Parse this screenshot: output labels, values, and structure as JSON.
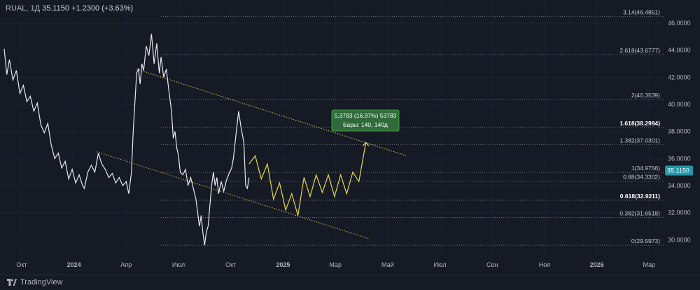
{
  "header": {
    "symbol": "RUAL, 1Д",
    "price": "35.1150",
    "change": "+1.2300 (+3.63%)"
  },
  "brand": "TradingView",
  "colors": {
    "background": "#161a25",
    "price_line": "#e6e8ee",
    "projection": "#e8d84a",
    "channel": "#d9c84a",
    "fib_line": "#6b6f7a",
    "axis_text": "#b2b5be",
    "current_price_bg": "#2196a8",
    "measure_bg": "#2f6b3a",
    "measure_border": "#4caf50"
  },
  "chart_data": {
    "type": "line",
    "symbol": "RUAL",
    "interval": "1Д",
    "y_axis": {
      "ylim": [
        29.4,
        47.0
      ],
      "ticks": [
        "30.0000",
        "32.0000",
        "34.0000",
        "36.0000",
        "38.0000",
        "40.0000",
        "42.0000",
        "44.0000",
        "46.0000"
      ],
      "position": "right"
    },
    "x_axis": {
      "ticks": [
        "Окт",
        "2024",
        "Апр",
        "Июл",
        "Окт",
        "2025",
        "Мар",
        "Май",
        "Июл",
        "Сен",
        "Ноя",
        "2026",
        "Мар"
      ]
    },
    "current_price": "35.1150",
    "fib_levels": [
      {
        "label": "0(29.5973)",
        "value": 29.5973
      },
      {
        "label": "0.382(31.6518)",
        "value": 31.6518
      },
      {
        "label": "0.618(32.9211)",
        "value": 32.9211,
        "bold": true
      },
      {
        "label": "0.88(34.3302)",
        "value": 34.3302
      },
      {
        "label": "1(34.9756)",
        "value": 34.9756
      },
      {
        "label": "1.382(37.0301)",
        "value": 37.0301
      },
      {
        "label": "1.618(38.2994)",
        "value": 38.2994,
        "bold": true
      },
      {
        "label": "2(40.3539)",
        "value": 40.3539
      },
      {
        "label": "2.618(43.6777)",
        "value": 43.6777
      },
      {
        "label": "3.14(46.4851)",
        "value": 46.4851
      }
    ],
    "measure": {
      "line1": "5.3783 (16.97%) 53783",
      "line2": "Бары: 140, 140д"
    },
    "price_series": [
      [
        0,
        44.1
      ],
      [
        0.15,
        42.2
      ],
      [
        0.3,
        43.3
      ],
      [
        0.5,
        41.8
      ],
      [
        0.7,
        42.5
      ],
      [
        0.9,
        40.8
      ],
      [
        1.1,
        41.4
      ],
      [
        1.3,
        40.2
      ],
      [
        1.5,
        40.6
      ],
      [
        1.7,
        39.5
      ],
      [
        1.9,
        40.1
      ],
      [
        2.1,
        38.5
      ],
      [
        2.3,
        37.9
      ],
      [
        2.5,
        38.6
      ],
      [
        2.7,
        37.0
      ],
      [
        2.9,
        36.0
      ],
      [
        3.1,
        36.4
      ],
      [
        3.3,
        35.3
      ],
      [
        3.5,
        35.8
      ],
      [
        3.7,
        34.5
      ],
      [
        3.9,
        35.2
      ],
      [
        4.1,
        34.2
      ],
      [
        4.3,
        34.8
      ],
      [
        4.5,
        34.0
      ],
      [
        4.6,
        33.8
      ],
      [
        4.8,
        35.0
      ],
      [
        5.0,
        35.5
      ],
      [
        5.2,
        35.0
      ],
      [
        5.4,
        36.4
      ],
      [
        5.6,
        35.6
      ],
      [
        5.8,
        35.2
      ],
      [
        6.0,
        34.6
      ],
      [
        6.2,
        34.9
      ],
      [
        6.4,
        34.2
      ],
      [
        6.6,
        34.6
      ],
      [
        6.8,
        34.0
      ],
      [
        7.0,
        34.3
      ],
      [
        7.15,
        33.4
      ],
      [
        7.3,
        35.0
      ],
      [
        7.4,
        38.0
      ],
      [
        7.5,
        40.2
      ],
      [
        7.6,
        42.3
      ],
      [
        7.7,
        42.6
      ],
      [
        7.8,
        41.5
      ],
      [
        7.9,
        43.0
      ],
      [
        8.0,
        42.5
      ],
      [
        8.15,
        44.3
      ],
      [
        8.3,
        43.6
      ],
      [
        8.45,
        45.2
      ],
      [
        8.6,
        43.0
      ],
      [
        8.75,
        44.5
      ],
      [
        8.9,
        42.3
      ],
      [
        9.0,
        43.5
      ],
      [
        9.15,
        42.0
      ],
      [
        9.3,
        42.6
      ],
      [
        9.45,
        41.0
      ],
      [
        9.6,
        39.5
      ],
      [
        9.7,
        37.5
      ],
      [
        9.8,
        38.0
      ],
      [
        9.9,
        36.8
      ],
      [
        10.0,
        36.2
      ],
      [
        10.1,
        35.0
      ],
      [
        10.25,
        34.8
      ],
      [
        10.4,
        35.2
      ],
      [
        10.55,
        34.0
      ],
      [
        10.7,
        34.6
      ],
      [
        10.85,
        33.8
      ],
      [
        11.0,
        33.0
      ],
      [
        11.1,
        32.0
      ],
      [
        11.2,
        31.0
      ],
      [
        11.3,
        31.8
      ],
      [
        11.4,
        30.5
      ],
      [
        11.5,
        29.6
      ],
      [
        11.6,
        30.6
      ],
      [
        11.7,
        31.0
      ],
      [
        11.8,
        32.5
      ],
      [
        11.9,
        34.0
      ],
      [
        12.0,
        35.0
      ],
      [
        12.1,
        34.0
      ],
      [
        12.2,
        34.6
      ],
      [
        12.3,
        33.4
      ],
      [
        12.45,
        34.3
      ],
      [
        12.6,
        33.6
      ],
      [
        12.75,
        34.4
      ],
      [
        12.9,
        34.9
      ],
      [
        13.05,
        35.3
      ],
      [
        13.15,
        36.0
      ],
      [
        13.3,
        37.8
      ],
      [
        13.45,
        39.5
      ],
      [
        13.6,
        38.2
      ],
      [
        13.75,
        37.2
      ],
      [
        13.85,
        34.0
      ],
      [
        13.95,
        33.8
      ],
      [
        14.05,
        34.6
      ]
    ],
    "projection_series": [
      [
        14.05,
        35.6
      ],
      [
        14.4,
        36.2
      ],
      [
        14.75,
        34.5
      ],
      [
        15.1,
        35.6
      ],
      [
        15.45,
        33.0
      ],
      [
        15.8,
        34.2
      ],
      [
        16.15,
        32.2
      ],
      [
        16.5,
        33.4
      ],
      [
        16.85,
        31.8
      ],
      [
        17.2,
        34.6
      ],
      [
        17.55,
        33.2
      ],
      [
        17.9,
        34.8
      ],
      [
        18.25,
        33.5
      ],
      [
        18.6,
        34.8
      ],
      [
        18.95,
        33.2
      ],
      [
        19.3,
        34.8
      ],
      [
        19.65,
        33.4
      ],
      [
        20.0,
        35.0
      ],
      [
        20.35,
        34.3
      ],
      [
        20.75,
        37.2
      ]
    ],
    "channel_lines": [
      {
        "from": [
          7.6,
          42.6
        ],
        "to": [
          23.1,
          36.2
        ]
      },
      {
        "from": [
          5.3,
          36.5
        ],
        "to": [
          20.9,
          30.1
        ]
      }
    ],
    "measure_arrow": {
      "from": [
        20.75,
        37.2
      ],
      "to": [
        20.75,
        37.2
      ]
    },
    "month_index": {
      "Окт": [
        1,
        13
      ],
      "2024": [
        4
      ],
      "Апр": [
        7
      ],
      "Июл": [
        10,
        25
      ],
      "2025": [
        16
      ],
      "Мар": [
        19,
        36
      ],
      "Май": [
        22
      ],
      "Сен": [
        28
      ],
      "Ноя": [
        31
      ],
      "2026": [
        34
      ]
    }
  }
}
